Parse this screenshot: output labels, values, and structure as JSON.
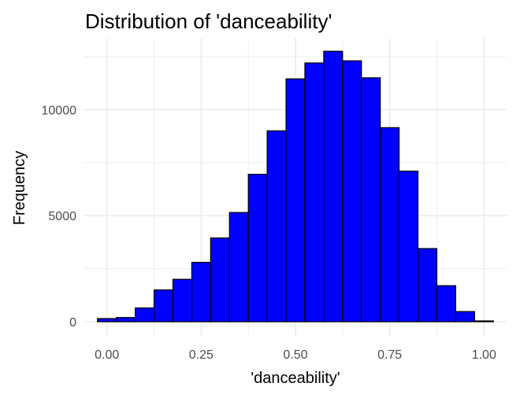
{
  "chart_data": {
    "type": "bar",
    "title": "Distribution of 'danceability'",
    "xlabel": "'danceability'",
    "ylabel": "Frequency",
    "bin_width": 0.05,
    "bins": [
      {
        "x0": -0.025,
        "x1": 0.025,
        "value": 150
      },
      {
        "x0": 0.025,
        "x1": 0.075,
        "value": 200
      },
      {
        "x0": 0.075,
        "x1": 0.125,
        "value": 650
      },
      {
        "x0": 0.125,
        "x1": 0.175,
        "value": 1500
      },
      {
        "x0": 0.175,
        "x1": 0.225,
        "value": 2000
      },
      {
        "x0": 0.225,
        "x1": 0.275,
        "value": 2800
      },
      {
        "x0": 0.275,
        "x1": 0.325,
        "value": 3950
      },
      {
        "x0": 0.325,
        "x1": 0.375,
        "value": 5150
      },
      {
        "x0": 0.375,
        "x1": 0.425,
        "value": 6950
      },
      {
        "x0": 0.425,
        "x1": 0.475,
        "value": 9000
      },
      {
        "x0": 0.475,
        "x1": 0.525,
        "value": 11450
      },
      {
        "x0": 0.525,
        "x1": 0.575,
        "value": 12200
      },
      {
        "x0": 0.575,
        "x1": 0.625,
        "value": 12750
      },
      {
        "x0": 0.625,
        "x1": 0.675,
        "value": 12300
      },
      {
        "x0": 0.675,
        "x1": 0.725,
        "value": 11500
      },
      {
        "x0": 0.725,
        "x1": 0.775,
        "value": 9150
      },
      {
        "x0": 0.775,
        "x1": 0.825,
        "value": 7100
      },
      {
        "x0": 0.825,
        "x1": 0.875,
        "value": 3450
      },
      {
        "x0": 0.875,
        "x1": 0.925,
        "value": 1700
      },
      {
        "x0": 0.925,
        "x1": 0.975,
        "value": 480
      },
      {
        "x0": 0.975,
        "x1": 1.025,
        "value": 40
      }
    ],
    "xlim": [
      -0.06,
      1.06
    ],
    "ylim": [
      -700,
      13350
    ],
    "x_ticks": [
      0.0,
      0.25,
      0.5,
      0.75,
      1.0
    ],
    "x_tick_labels": [
      "0.00",
      "0.25",
      "0.50",
      "0.75",
      "1.00"
    ],
    "y_ticks": [
      0,
      5000,
      10000
    ],
    "y_tick_labels": [
      "0",
      "5000",
      "10000"
    ],
    "grid": true,
    "legend": "none",
    "colors": {
      "bar_fill": "#0000ff",
      "bar_stroke": "#000000",
      "grid": "#ebebeb",
      "background": "#ffffff"
    }
  }
}
